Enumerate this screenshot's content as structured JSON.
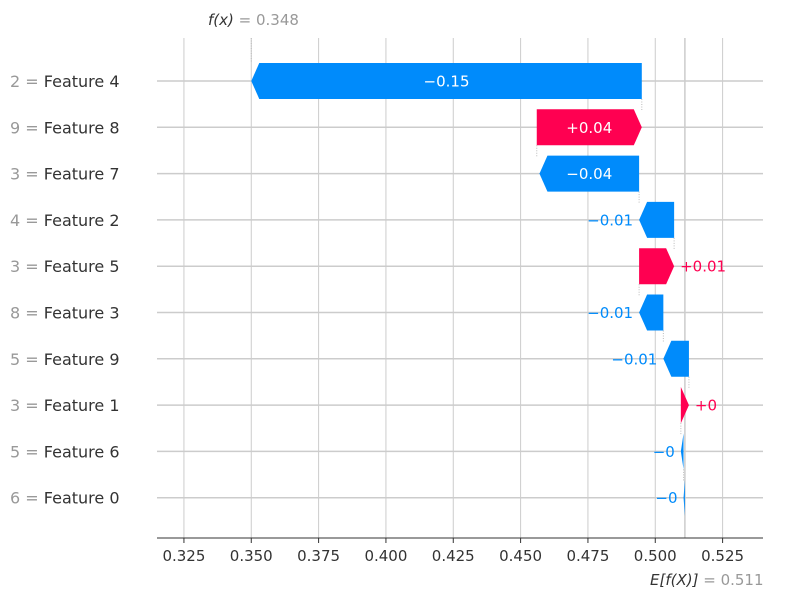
{
  "chart_data": {
    "type": "waterfall",
    "fx_label": "f(x)",
    "fx_value": "0.348",
    "ex_label": "E[f(X)]",
    "ex_value": "0.511",
    "base_value": 0.511,
    "final_value": 0.348,
    "xlim": [
      0.315,
      0.54
    ],
    "xticks": [
      0.325,
      0.35,
      0.375,
      0.4,
      0.425,
      0.45,
      0.475,
      0.5,
      0.525
    ],
    "xtick_labels": [
      "0.325",
      "0.350",
      "0.375",
      "0.400",
      "0.425",
      "0.450",
      "0.475",
      "0.500",
      "0.525"
    ],
    "colors": {
      "positive": "#ff0051",
      "negative": "#008bfb",
      "grid": "#cccccc",
      "muted": "#999999",
      "text": "#333333"
    },
    "features": [
      {
        "value_prefix": "2",
        "name": "Feature 4",
        "start": 0.495,
        "end": 0.35,
        "label": "−0.15",
        "label_inside": true
      },
      {
        "value_prefix": "9",
        "name": "Feature 8",
        "start": 0.456,
        "end": 0.495,
        "label": "+0.04",
        "label_inside": true
      },
      {
        "value_prefix": "3",
        "name": "Feature 7",
        "start": 0.494,
        "end": 0.457,
        "label": "−0.04",
        "label_inside": true
      },
      {
        "value_prefix": "4",
        "name": "Feature 2",
        "start": 0.507,
        "end": 0.494,
        "label": "−0.01",
        "label_inside": false
      },
      {
        "value_prefix": "3",
        "name": "Feature 5",
        "start": 0.494,
        "end": 0.507,
        "label": "+0.01",
        "label_inside": false
      },
      {
        "value_prefix": "8",
        "name": "Feature 3",
        "start": 0.503,
        "end": 0.494,
        "label": "−0.01",
        "label_inside": false
      },
      {
        "value_prefix": "5",
        "name": "Feature 9",
        "start": 0.5125,
        "end": 0.503,
        "label": "−0.01",
        "label_inside": false
      },
      {
        "value_prefix": "3",
        "name": "Feature 1",
        "start": 0.5095,
        "end": 0.5125,
        "label": "+0",
        "label_inside": false
      },
      {
        "value_prefix": "5",
        "name": "Feature 6",
        "start": 0.5105,
        "end": 0.5095,
        "label": "−0",
        "label_inside": false
      },
      {
        "value_prefix": "6",
        "name": "Feature 0",
        "start": 0.511,
        "end": 0.5105,
        "label": "−0",
        "label_inside": false
      }
    ]
  }
}
